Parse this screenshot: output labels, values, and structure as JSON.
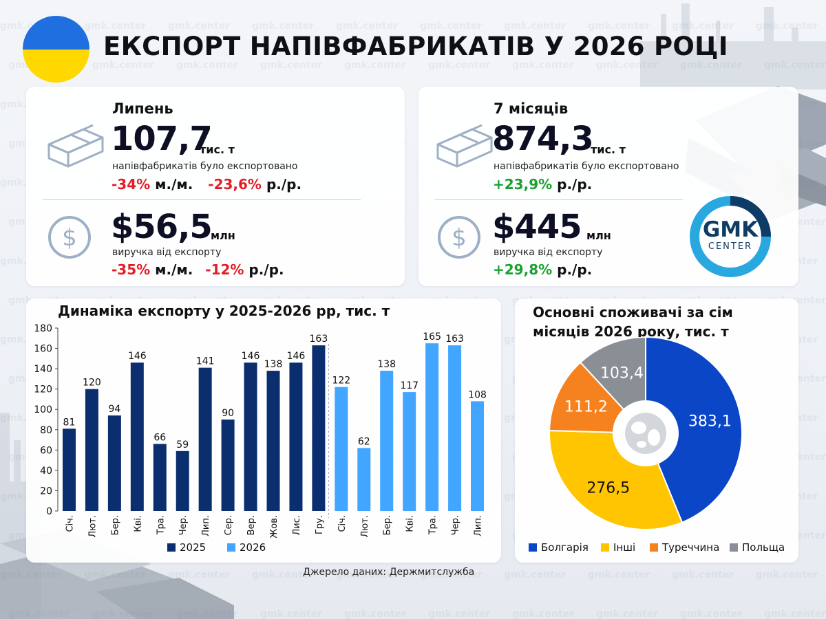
{
  "header": {
    "title": "ЕКСПОРТ НАПІВФАБРИКАТІВ У 2026 РОЦІ"
  },
  "watermark": "gmk.center",
  "kpi_july": {
    "label": "Липень",
    "volume": "107,7",
    "volume_unit": "тис. т",
    "volume_desc": "напівфабрикатів було експортовано",
    "volume_mm": "-34%",
    "mm_label": "м./м.",
    "volume_yy": "-23,6%",
    "yy_label": "р./р.",
    "revenue": "$56,5",
    "revenue_unit": "млн",
    "revenue_desc": "виручка від експорту",
    "revenue_mm": "-35%",
    "revenue_yy": "-12%"
  },
  "kpi_7m": {
    "label": "7 місяців",
    "volume": "874,3",
    "volume_unit": "тис. т",
    "volume_desc": "напівфабрикатів було експортовано",
    "volume_yy": "+23,9%",
    "yy_label": "р./р.",
    "revenue": "$445",
    "revenue_unit": "млн",
    "revenue_desc": "виручка від експорту",
    "revenue_yy": "+29,8%"
  },
  "logo": {
    "main": "GMK",
    "sub": "CENTER"
  },
  "source": "Джерело даних: Держмитслужба",
  "colors": {
    "bar2025": "#0b2e6e",
    "bar2026": "#42a5ff",
    "bulgaria": "#0b46c7",
    "other": "#ffc500",
    "turkey": "#f5821f",
    "poland": "#8a8f96"
  },
  "chart_data": [
    {
      "type": "bar",
      "title": "Динаміка експорту у 2025-2026 рр, тис. т",
      "categories": [
        "Січ.",
        "Лют.",
        "Бер.",
        "Кві.",
        "Тра.",
        "Чер.",
        "Лип.",
        "Сер.",
        "Вер.",
        "Жов.",
        "Лис.",
        "Гру.",
        "Січ.",
        "Лют.",
        "Бер.",
        "Кві.",
        "Тра.",
        "Чер.",
        "Лип."
      ],
      "series": [
        {
          "name": "2025",
          "values": [
            81,
            120,
            94,
            146,
            66,
            59,
            141,
            90,
            146,
            138,
            146,
            163,
            null,
            null,
            null,
            null,
            null,
            null,
            null
          ]
        },
        {
          "name": "2026",
          "values": [
            null,
            null,
            null,
            null,
            null,
            null,
            null,
            null,
            null,
            null,
            null,
            null,
            122,
            62,
            138,
            117,
            165,
            163,
            108
          ]
        }
      ],
      "ylim": [
        0,
        180
      ],
      "yticks": [
        0,
        20,
        40,
        60,
        80,
        100,
        120,
        140,
        160,
        180
      ],
      "grid": false,
      "legend": "bottom"
    },
    {
      "type": "pie",
      "title": "Основні споживачі за сім місяців 2026 року, тис. т",
      "labels": [
        "Болгарія",
        "Інші",
        "Туреччина",
        "Польща"
      ],
      "values": [
        383.1,
        276.5,
        111.2,
        103.4
      ],
      "value_labels": [
        "383,1",
        "276,5",
        "111,2",
        "103,4"
      ],
      "legend": "bottom"
    }
  ]
}
